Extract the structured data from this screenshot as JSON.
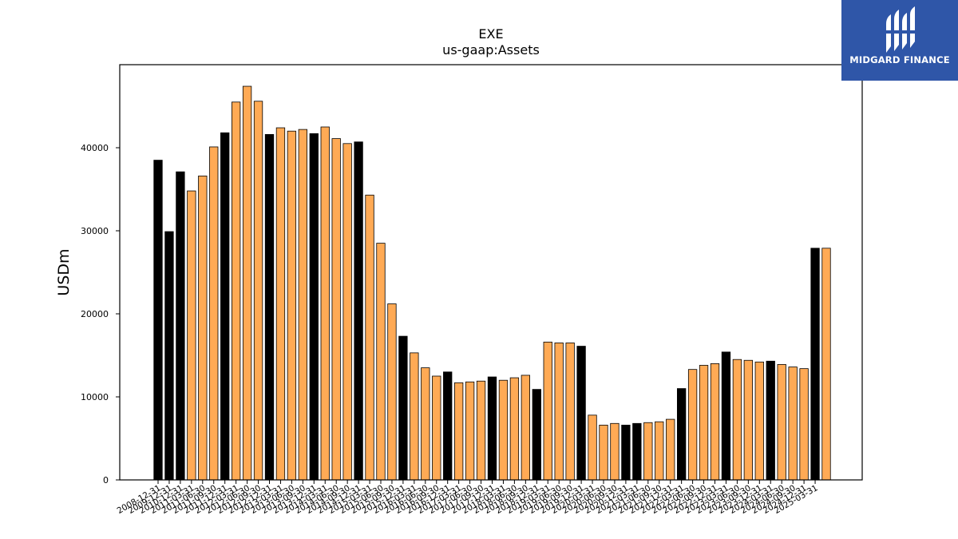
{
  "chart_data": {
    "type": "bar",
    "title": "EXE",
    "subtitle": "us-gaap:Assets",
    "ylabel": "USDm",
    "xlabel": "",
    "ylim": [
      0,
      50000
    ],
    "yticks": [
      0,
      10000,
      20000,
      30000,
      40000
    ],
    "grid": false,
    "colors": {
      "annual": "#000000",
      "quarterly": "#ffaa55",
      "edge": "#000000"
    },
    "categories": [
      "2008-12-31",
      "2009-12-31",
      "2010-12-31",
      "2011-03-31",
      "2011-06-30",
      "2011-09-30",
      "2011-12-31",
      "2012-03-31",
      "2012-06-30",
      "2012-09-30",
      "2012-12-31",
      "2013-03-31",
      "2013-06-30",
      "2013-09-30",
      "2013-12-31",
      "2014-03-31",
      "2014-06-30",
      "2014-09-30",
      "2014-12-31",
      "2015-03-31",
      "2015-06-30",
      "2015-09-30",
      "2015-12-31",
      "2016-03-31",
      "2016-06-30",
      "2016-09-30",
      "2016-12-31",
      "2017-03-31",
      "2017-06-30",
      "2017-09-30",
      "2017-12-31",
      "2018-03-31",
      "2018-06-30",
      "2018-09-30",
      "2018-12-31",
      "2019-03-31",
      "2019-06-30",
      "2019-09-30",
      "2019-12-31",
      "2020-03-31",
      "2020-06-30",
      "2020-09-30",
      "2020-12-31",
      "2021-03-31",
      "2021-06-30",
      "2021-09-30",
      "2021-12-31",
      "2022-03-31",
      "2022-06-30",
      "2022-09-30",
      "2022-12-31",
      "2023-03-31",
      "2023-06-30",
      "2023-09-30",
      "2023-12-31",
      "2024-03-31",
      "2024-06-30",
      "2024-09-30",
      "2024-12-31",
      "2025-03-31"
    ],
    "values": [
      38500,
      29900,
      37100,
      34800,
      36600,
      40100,
      41800,
      45500,
      47400,
      45600,
      41600,
      42400,
      42000,
      42200,
      41700,
      42500,
      41100,
      40500,
      40700,
      34300,
      28500,
      21200,
      17300,
      15300,
      13500,
      12500,
      13000,
      11700,
      11800,
      11900,
      12400,
      12000,
      12300,
      12600,
      10900,
      16600,
      16500,
      16500,
      16100,
      7800,
      6600,
      6800,
      6600,
      6800,
      6900,
      7000,
      7300,
      11000,
      13300,
      13800,
      14000,
      15400,
      14500,
      14400,
      14200,
      14300,
      13900,
      13600,
      13400,
      27900
    ],
    "extra_last_value": 27900,
    "annual_flags": [
      1,
      1,
      1,
      0,
      0,
      0,
      1,
      0,
      0,
      0,
      1,
      0,
      0,
      0,
      1,
      0,
      0,
      0,
      1,
      0,
      0,
      0,
      1,
      0,
      0,
      0,
      1,
      0,
      0,
      0,
      1,
      0,
      0,
      0,
      1,
      0,
      0,
      0,
      1,
      0,
      0,
      0,
      1,
      1,
      0,
      0,
      0,
      1,
      0,
      0,
      0,
      1,
      0,
      0,
      0,
      1,
      0,
      0,
      0,
      1
    ],
    "xtick_labels": [
      "2008-12-31",
      "2009-12-31",
      "2010-12-31",
      "2011-03-31",
      "2011-06-30",
      "2011-09-30",
      "2011-12-31",
      "2012-03-31",
      "2012-06-30",
      "2012-09-30",
      "2012-12-31",
      "2013-03-31",
      "2013-06-30",
      "2013-09-30",
      "2013-12-31",
      "2014-03-31",
      "2014-06-30",
      "2014-09-30",
      "2014-12-31",
      "2015-03-31",
      "2015-06-30",
      "2015-09-30",
      "2015-12-31",
      "2016-03-31",
      "2016-06-30",
      "2016-09-30",
      "2016-12-31",
      "2017-03-31",
      "2017-06-30",
      "2017-09-30",
      "2017-12-31",
      "2018-03-31",
      "2018-06-30",
      "2018-09-30",
      "2018-12-31",
      "2019-03-31",
      "2019-06-30",
      "2019-09-30",
      "2019-12-31",
      "2020-03-31",
      "2020-06-30",
      "2020-09-30",
      "2020-12-31",
      "2021-03-31",
      "2021-06-30",
      "2021-09-30",
      "2021-12-31",
      "2022-03-31",
      "2022-06-30",
      "2022-09-30",
      "2022-12-31",
      "2023-03-31",
      "2023-06-30",
      "2023-09-30",
      "2023-12-31",
      "2024-03-31",
      "2024-06-30",
      "2024-09-30",
      "2024-12-31",
      "2025-03-31"
    ]
  },
  "branding": {
    "name": "MIDGARD FINANCE",
    "logo_icon": "midgard-logo-icon"
  }
}
